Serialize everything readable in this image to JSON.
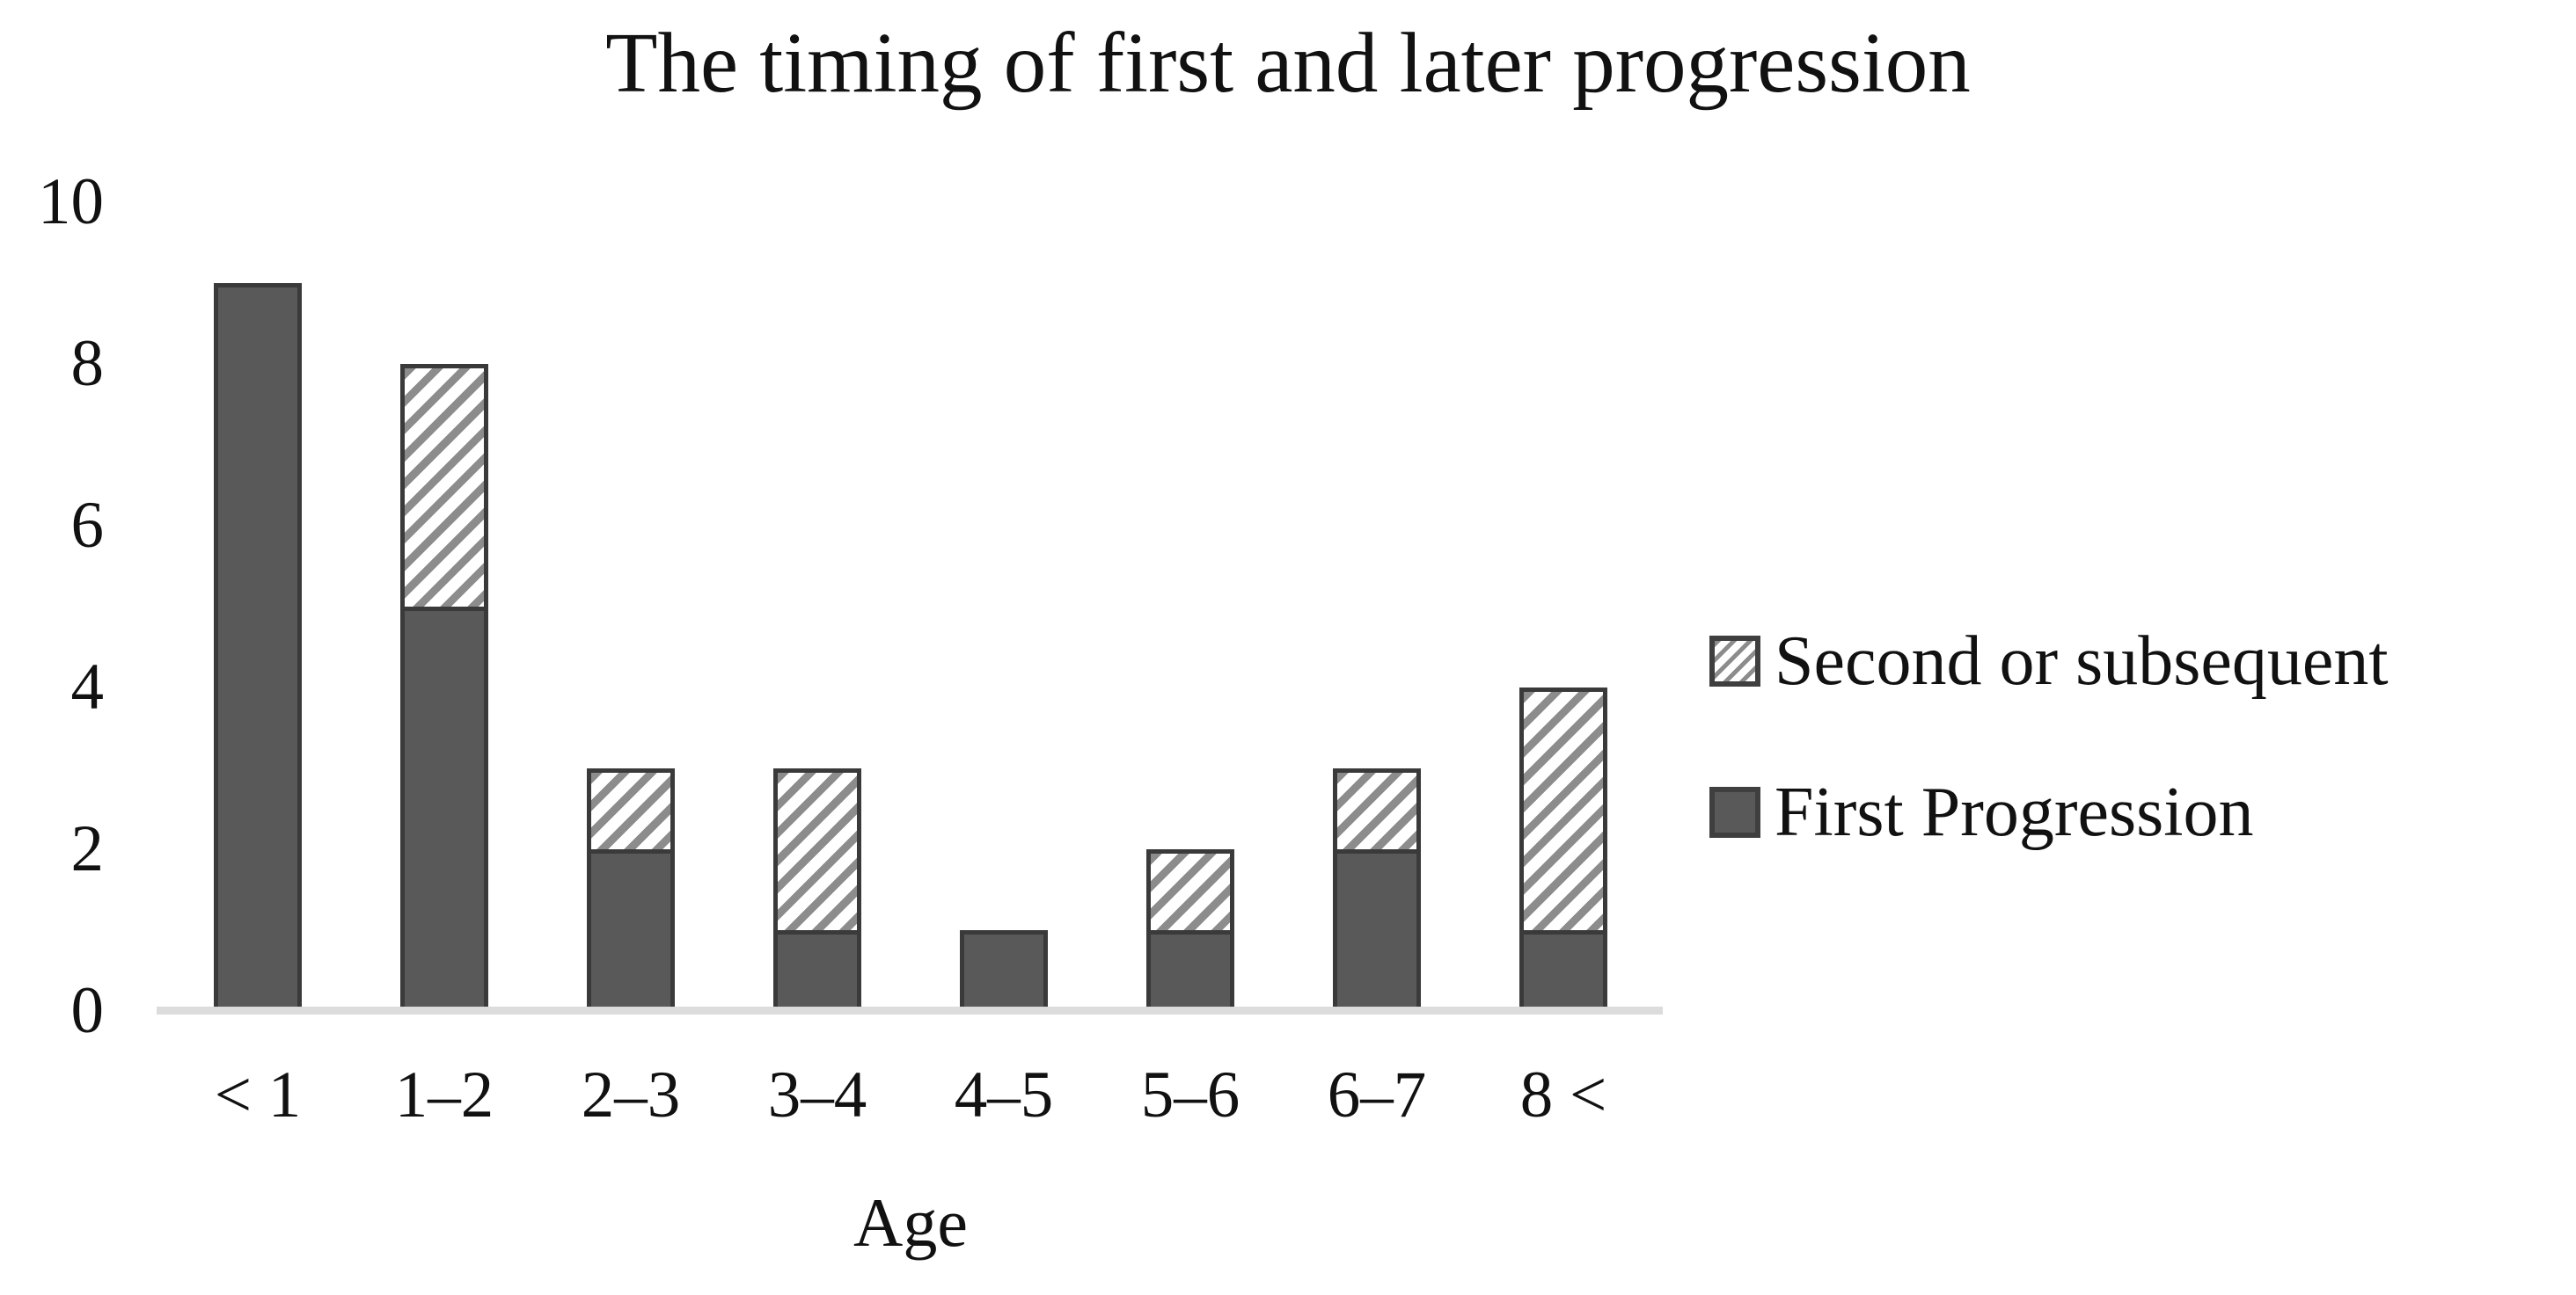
{
  "chart_data": {
    "type": "bar",
    "stacked": true,
    "title": "The timing of first and later progression",
    "xlabel": "Age",
    "ylabel": "",
    "categories": [
      "< 1",
      "1–2",
      "2–3",
      "3–4",
      "4–5",
      "5–6",
      "6–7",
      "8 <"
    ],
    "series": [
      {
        "name": "First Progression",
        "values": [
          9,
          5,
          2,
          1,
          1,
          1,
          2,
          1
        ],
        "pattern": "solid"
      },
      {
        "name": "Second or subsequent",
        "values": [
          0,
          3,
          1,
          2,
          0,
          1,
          1,
          3
        ],
        "pattern": "hatch"
      }
    ],
    "ylim": [
      0,
      10
    ],
    "yticks": [
      0,
      2,
      4,
      6,
      8,
      10
    ],
    "grid": false,
    "legend_position": "right"
  },
  "legend": {
    "items": [
      {
        "label": "Second or subsequent",
        "swatch": "hatch"
      },
      {
        "label": "First Progression",
        "swatch": "solid"
      }
    ]
  },
  "colors": {
    "bar_fill": "#595959",
    "bar_border": "#3a3a3a",
    "hatch_stroke": "#8c8c8c",
    "hatch_background": "#ffffff",
    "axis_line": "#dcdcdc",
    "text": "#111111",
    "background": "#ffffff"
  }
}
